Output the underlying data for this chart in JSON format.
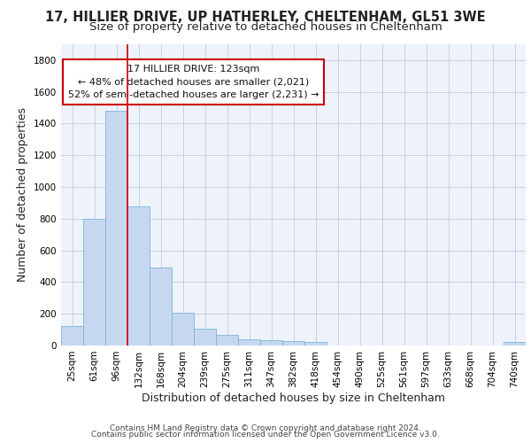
{
  "title_line1": "17, HILLIER DRIVE, UP HATHERLEY, CHELTENHAM, GL51 3WE",
  "title_line2": "Size of property relative to detached houses in Cheltenham",
  "xlabel": "Distribution of detached houses by size in Cheltenham",
  "ylabel": "Number of detached properties",
  "footnote_line1": "Contains HM Land Registry data © Crown copyright and database right 2024.",
  "footnote_line2": "Contains public sector information licensed under the Open Government Licence v3.0.",
  "categories": [
    "25sqm",
    "61sqm",
    "96sqm",
    "132sqm",
    "168sqm",
    "204sqm",
    "239sqm",
    "275sqm",
    "311sqm",
    "347sqm",
    "382sqm",
    "418sqm",
    "454sqm",
    "490sqm",
    "525sqm",
    "561sqm",
    "597sqm",
    "633sqm",
    "668sqm",
    "704sqm",
    "740sqm"
  ],
  "values": [
    125,
    800,
    1480,
    880,
    490,
    205,
    105,
    65,
    40,
    35,
    30,
    20,
    0,
    0,
    0,
    0,
    0,
    0,
    0,
    0,
    20
  ],
  "bar_color": "#c5d8f0",
  "bar_edgecolor": "#7fb3d9",
  "annotation_line1": "17 HILLIER DRIVE: 123sqm",
  "annotation_line2": "← 48% of detached houses are smaller (2,021)",
  "annotation_line3": "52% of semi-detached houses are larger (2,231) →",
  "property_line_x": 2.5,
  "ylim": [
    0,
    1900
  ],
  "yticks": [
    0,
    200,
    400,
    600,
    800,
    1000,
    1200,
    1400,
    1600,
    1800
  ],
  "background_color": "#eef2fb",
  "grid_color": "#c8cfe0",
  "title_fontsize": 10.5,
  "subtitle_fontsize": 9.5,
  "axis_label_fontsize": 9,
  "tick_fontsize": 7.5,
  "footnote_fontsize": 6.5
}
